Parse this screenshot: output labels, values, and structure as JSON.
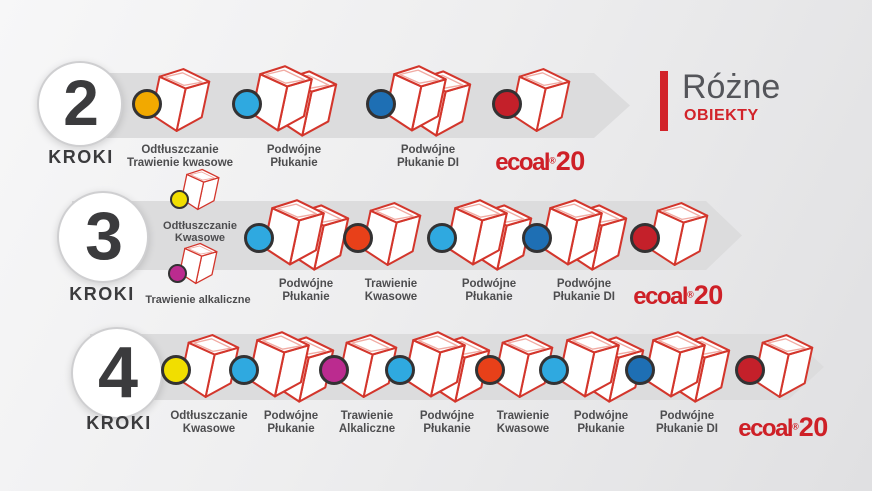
{
  "header": {
    "title": "Różne",
    "subtitle": "OBIEKTY",
    "accent_color": "#D2232A"
  },
  "brand": {
    "text": "ecoal",
    "registered": "®",
    "number": "20",
    "color": "#CE2027"
  },
  "colors": {
    "band": "#DCDCDD",
    "tank_outline": "#D3362C",
    "tank_inner_line": "#F0ABA3",
    "dot_outline": "#333233",
    "number_text": "#3B3B3D",
    "label_text": "#4D4D4F",
    "amber": "#F2A900",
    "yellow": "#F1DE00",
    "light_blue": "#2FA9E0",
    "dark_blue": "#1E6FB4",
    "orange_red": "#E84019",
    "magenta": "#BB2B8F",
    "crimson": "#C4202A"
  },
  "rows": [
    {
      "number": "2",
      "steps_label": "KROKI",
      "items": [
        {
          "type": "single",
          "dot_color": "#F2A900",
          "label": "Odtłuszczanie\nTrawienie kwasowe"
        },
        {
          "type": "double",
          "dot_color": "#2FA9E0",
          "label": "Podwójne\nPłukanie"
        },
        {
          "type": "double",
          "dot_color": "#1E6FB4",
          "label": "Podwójne\nPłukanie DI"
        },
        {
          "type": "single",
          "dot_color": "#C4202A",
          "label": "",
          "brand": true
        }
      ]
    },
    {
      "number": "3",
      "steps_label": "KROKI",
      "stack": [
        {
          "type": "single",
          "dot_color": "#F1DE00",
          "label": "Odtłuszczanie\nKwasowe"
        },
        {
          "type": "single",
          "dot_color": "#BB2B8F",
          "label": "Trawienie alkaliczne"
        }
      ],
      "items": [
        {
          "type": "double",
          "dot_color": "#2FA9E0",
          "label": "Podwójne\nPłukanie"
        },
        {
          "type": "single",
          "dot_color": "#E84019",
          "label": "Trawienie\nKwasowe"
        },
        {
          "type": "double",
          "dot_color": "#2FA9E0",
          "label": "Podwójne\nPłukanie"
        },
        {
          "type": "double",
          "dot_color": "#1E6FB4",
          "label": "Podwójne\nPłukanie DI"
        },
        {
          "type": "single",
          "dot_color": "#C4202A",
          "label": "",
          "brand": true
        }
      ]
    },
    {
      "number": "4",
      "steps_label": "KROKI",
      "items": [
        {
          "type": "single",
          "dot_color": "#F1DE00",
          "label": "Odtłuszczanie\nKwasowe"
        },
        {
          "type": "double",
          "dot_color": "#2FA9E0",
          "label": "Podwójne\nPłukanie"
        },
        {
          "type": "single",
          "dot_color": "#BB2B8F",
          "label": "Trawienie\nAlkaliczne"
        },
        {
          "type": "double",
          "dot_color": "#2FA9E0",
          "label": "Podwójne\nPłukanie"
        },
        {
          "type": "single",
          "dot_color": "#E84019",
          "label": "Trawienie\nKwasowe"
        },
        {
          "type": "double",
          "dot_color": "#2FA9E0",
          "label": "Podwójne\nPłukanie"
        },
        {
          "type": "double",
          "dot_color": "#1E6FB4",
          "label": "Podwójne\nPłukanie DI"
        },
        {
          "type": "single",
          "dot_color": "#C4202A",
          "label": "",
          "brand": true
        }
      ]
    }
  ]
}
